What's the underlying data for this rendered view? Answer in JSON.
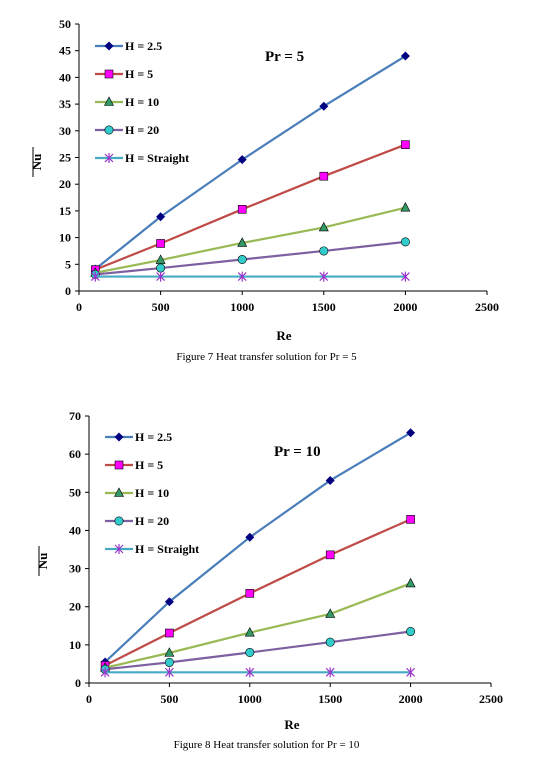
{
  "chart_data": [
    {
      "type": "line",
      "x": [
        100,
        500,
        1000,
        1500,
        2000
      ],
      "series": [
        {
          "name": "H = 2.5",
          "values": [
            4.1,
            13.9,
            24.6,
            34.6,
            44.0
          ],
          "color": "#4a7ebb",
          "marker": "diamond",
          "marker_color": "#000080"
        },
        {
          "name": "H = 5",
          "values": [
            4.0,
            8.9,
            15.3,
            21.5,
            27.4
          ],
          "color": "#be4b48",
          "marker": "square",
          "marker_color": "#ff00ff"
        },
        {
          "name": "H = 10",
          "values": [
            3.4,
            5.8,
            9.0,
            11.9,
            15.6
          ],
          "color": "#98b954",
          "marker": "triangle",
          "marker_color": "#339966"
        },
        {
          "name": "H = 20",
          "values": [
            3.1,
            4.3,
            5.9,
            7.5,
            9.2
          ],
          "color": "#7d60a0",
          "marker": "circle",
          "marker_color": "#33cccc"
        },
        {
          "name": "H = Straight",
          "values": [
            2.7,
            2.7,
            2.7,
            2.7,
            2.7
          ],
          "color": "#46aac5",
          "marker": "star",
          "marker_color": "#9933cc"
        }
      ],
      "annotation": "Pr = 5",
      "xlabel": "Re",
      "ylabel": "Nu",
      "xlim": [
        0,
        2500
      ],
      "ylim": [
        0,
        50
      ],
      "xticks": [
        0,
        500,
        1000,
        1500,
        2000,
        2500
      ],
      "yticks": [
        0,
        5,
        10,
        15,
        20,
        25,
        30,
        35,
        40,
        45,
        50
      ],
      "grid": false,
      "legend_position": "top-left"
    },
    {
      "type": "line",
      "x": [
        100,
        500,
        1000,
        1500,
        2000
      ],
      "series": [
        {
          "name": "H = 2.5",
          "values": [
            5.5,
            21.3,
            38.2,
            53.1,
            65.6
          ],
          "color": "#4a7ebb",
          "marker": "diamond",
          "marker_color": "#000080"
        },
        {
          "name": "H = 5",
          "values": [
            4.6,
            13.1,
            23.5,
            33.6,
            42.9
          ],
          "color": "#be4b48",
          "marker": "square",
          "marker_color": "#ff00ff"
        },
        {
          "name": "H = 10",
          "values": [
            4.0,
            7.9,
            13.2,
            18.1,
            26.1
          ],
          "color": "#98b954",
          "marker": "triangle",
          "marker_color": "#339966"
        },
        {
          "name": "H = 20",
          "values": [
            3.6,
            5.4,
            8.0,
            10.7,
            13.5
          ],
          "color": "#7d60a0",
          "marker": "circle",
          "marker_color": "#33cccc"
        },
        {
          "name": "H = Straight",
          "values": [
            2.8,
            2.8,
            2.8,
            2.8,
            2.8
          ],
          "color": "#46aac5",
          "marker": "star",
          "marker_color": "#9933cc"
        }
      ],
      "annotation": "Pr = 10",
      "xlabel": "Re",
      "ylabel": "Nu",
      "xlim": [
        0,
        2500
      ],
      "ylim": [
        0,
        70
      ],
      "xticks": [
        0,
        500,
        1000,
        1500,
        2000,
        2500
      ],
      "yticks": [
        0,
        10,
        20,
        30,
        40,
        50,
        60,
        70
      ],
      "grid": false,
      "legend_position": "top-left"
    }
  ],
  "captions": [
    {
      "text": "Figure 7 Heat transfer solution for Pr = 5"
    },
    {
      "text": "Figure 8 Heat transfer solution for Pr = 10"
    }
  ]
}
